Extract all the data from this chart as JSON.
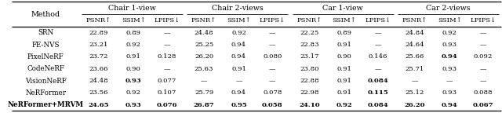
{
  "col_groups": [
    {
      "label": "Chair 1-view",
      "cols": [
        0,
        1,
        2
      ]
    },
    {
      "label": "Chair 2-views",
      "cols": [
        3,
        4,
        5
      ]
    },
    {
      "label": "Car 1-view",
      "cols": [
        6,
        7,
        8
      ]
    },
    {
      "label": "Car 2-views",
      "cols": [
        9,
        10,
        11
      ]
    }
  ],
  "sub_headers": [
    "PSNR↑",
    "SSIM↑",
    "LPIPS↓",
    "PSNR↑",
    "SSIM↑",
    "LPIPS↓",
    "PSNR↑",
    "SSIM↑",
    "LPIPS↓",
    "PSNR↑",
    "SSIM↑",
    "LPIPS↓"
  ],
  "methods": [
    "SRN",
    "FE-NVS",
    "PixelNeRF",
    "CodeNeRF",
    "VisionNeRF",
    "NeRFormer",
    "NeRFormer+MRVM"
  ],
  "data": [
    [
      "22.89",
      "0.89",
      "—",
      "24.48",
      "0.92",
      "—",
      "22.25",
      "0.89",
      "—",
      "24.84",
      "0.92",
      "—"
    ],
    [
      "23.21",
      "0.92",
      "—",
      "25.25",
      "0.94",
      "—",
      "22.83",
      "0.91",
      "—",
      "24.64",
      "0.93",
      "—"
    ],
    [
      "23.72",
      "0.91",
      "0.128",
      "26.20",
      "0.94",
      "0.080",
      "23.17",
      "0.90",
      "0.146",
      "25.66",
      "0.94",
      "0.092"
    ],
    [
      "23.66",
      "0.90",
      "—",
      "25.63",
      "0.91",
      "—",
      "23.80",
      "0.91",
      "—",
      "25.71",
      "0.93",
      "—"
    ],
    [
      "24.48",
      "0.93",
      "0.077",
      "—",
      "—",
      "—",
      "22.88",
      "0.91",
      "0.084",
      "—",
      "—",
      "—"
    ],
    [
      "23.56",
      "0.92",
      "0.107",
      "25.79",
      "0.94",
      "0.078",
      "22.98",
      "0.91",
      "0.115",
      "25.12",
      "0.93",
      "0.088"
    ],
    [
      "24.65",
      "0.93",
      "0.076",
      "26.87",
      "0.95",
      "0.058",
      "24.10",
      "0.92",
      "0.084",
      "26.20",
      "0.94",
      "0.067"
    ]
  ],
  "bold_cells": {
    "4": [
      1,
      8
    ],
    "5": [
      8
    ],
    "2": [
      10
    ],
    "6": [
      0,
      1,
      2,
      3,
      4,
      5,
      6,
      7,
      8,
      9,
      10,
      11
    ]
  },
  "method_bold": [
    6
  ],
  "col_widths_rel": [
    1.55,
    0.88,
    0.72,
    0.82,
    0.88,
    0.72,
    0.82,
    0.88,
    0.72,
    0.82,
    0.88,
    0.72,
    0.82
  ],
  "fontsize_header_group": 6.8,
  "fontsize_subheader": 6.0,
  "fontsize_method": 6.3,
  "fontsize_data": 6.1
}
